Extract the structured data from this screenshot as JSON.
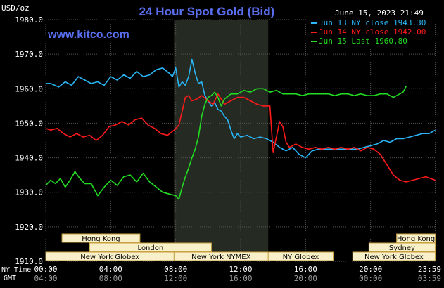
{
  "chart_data": {
    "type": "line",
    "title": "24 Hour Spot Gold (Bid)",
    "watermark": "www.kitco.com",
    "timestamp": "June 15, 2023 21:49",
    "ylabel": "USD/oz",
    "ylim": [
      1910,
      1980
    ],
    "y_ticks": [
      "1980.0",
      "1970.0",
      "1960.0",
      "1950.0",
      "1940.0",
      "1930.0",
      "1920.0",
      "1910.0"
    ],
    "y_tick_values": [
      1980,
      1970,
      1960,
      1950,
      1940,
      1930,
      1920,
      1910
    ],
    "xlim": [
      0,
      24
    ],
    "x_ticks_label": "NY Time",
    "x_ticks": [
      "00:00",
      "04:00",
      "08:00",
      "12:00",
      "16:00",
      "20:00",
      "23:59"
    ],
    "x_tick_values": [
      0,
      4,
      8,
      12,
      16,
      20,
      23.98
    ],
    "gmt_label": "GMT",
    "gmt_ticks": [
      "04:00",
      "08:00",
      "12:00",
      "16:00",
      "20:00",
      "00:00",
      "03:59"
    ],
    "grid": true,
    "highlight_range": [
      7.9,
      13.7
    ],
    "colors": {
      "background": "#000000",
      "grid": "#555555",
      "title": "#5a6ef0",
      "text": "#ffffff",
      "session_fill": "#f8f0c8",
      "session_border": "#c8a040",
      "highlight": "#252a22"
    },
    "series": [
      {
        "name": "Jun 13 NY close 1943.30",
        "color": "#29b6f6",
        "x": [
          0,
          0.3,
          0.8,
          1.2,
          1.6,
          2.0,
          2.4,
          2.8,
          3.2,
          3.6,
          4.0,
          4.4,
          4.8,
          5.2,
          5.6,
          6.0,
          6.4,
          6.8,
          7.2,
          7.6,
          7.8,
          8.0,
          8.2,
          8.4,
          8.6,
          8.8,
          9.0,
          9.2,
          9.4,
          9.6,
          9.8,
          10.0,
          10.2,
          10.4,
          10.6,
          10.8,
          11.0,
          11.2,
          11.4,
          11.6,
          11.8,
          12.0,
          12.4,
          12.8,
          13.2,
          13.6,
          14.0,
          14.4,
          14.8,
          15.2,
          15.6,
          16.0,
          16.4,
          16.8,
          17.2,
          17.6,
          18.0,
          18.4,
          18.8,
          19.2,
          19.6,
          20.0,
          20.4,
          20.8,
          21.2,
          21.6,
          22.0,
          22.4,
          22.8,
          23.2,
          23.6,
          23.98
        ],
        "values": [
          1961.5,
          1961.5,
          1960.5,
          1962.0,
          1961.0,
          1963.5,
          1962.5,
          1961.5,
          1962.0,
          1961.0,
          1963.5,
          1962.5,
          1964.0,
          1963.0,
          1965.0,
          1963.5,
          1964.0,
          1965.5,
          1966.0,
          1964.5,
          1963.5,
          1966.0,
          1960.5,
          1962.0,
          1961.0,
          1963.5,
          1968.5,
          1964.5,
          1961.5,
          1962.0,
          1958.0,
          1956.5,
          1955.0,
          1956.0,
          1954.0,
          1953.5,
          1952.0,
          1951.0,
          1948.0,
          1945.5,
          1947.0,
          1946.0,
          1946.5,
          1945.5,
          1946.0,
          1945.5,
          1944.5,
          1943.0,
          1942.0,
          1943.0,
          1941.0,
          1940.0,
          1942.0,
          1942.5,
          1942.5,
          1942.5,
          1942.5,
          1942.5,
          1942.5,
          1942.5,
          1943.0,
          1943.5,
          1944.0,
          1945.0,
          1944.5,
          1945.5,
          1945.5,
          1946.0,
          1946.5,
          1947.0,
          1947.0,
          1948.0
        ]
      },
      {
        "name": "Jun 14 NY close 1942.00",
        "color": "#ff1a1a",
        "x": [
          0,
          0.3,
          0.7,
          1.1,
          1.5,
          1.9,
          2.3,
          2.7,
          3.1,
          3.5,
          3.9,
          4.3,
          4.7,
          5.1,
          5.5,
          5.9,
          6.3,
          6.7,
          7.1,
          7.5,
          7.9,
          8.0,
          8.2,
          8.4,
          8.6,
          8.8,
          9.0,
          9.3,
          9.6,
          10.0,
          10.3,
          10.6,
          11.0,
          11.4,
          11.8,
          12.2,
          12.6,
          13.0,
          13.4,
          13.8,
          14.0,
          14.2,
          14.4,
          14.6,
          14.8,
          15.0,
          15.4,
          15.8,
          16.2,
          16.6,
          17.0,
          17.4,
          17.8,
          18.2,
          18.6,
          19.0,
          19.4,
          19.8,
          20.2,
          20.6,
          21.0,
          21.4,
          21.8,
          22.2,
          22.6,
          23.0,
          23.4,
          23.98
        ],
        "values": [
          1948.5,
          1948.0,
          1948.5,
          1947.0,
          1946.0,
          1947.0,
          1946.0,
          1946.5,
          1945.0,
          1946.5,
          1949.0,
          1949.5,
          1950.5,
          1949.5,
          1951.0,
          1951.5,
          1949.5,
          1948.5,
          1947.0,
          1946.5,
          1948.0,
          1948.5,
          1949.5,
          1953.5,
          1957.5,
          1958.0,
          1956.5,
          1957.0,
          1958.0,
          1956.5,
          1955.5,
          1958.5,
          1955.5,
          1956.5,
          1957.5,
          1957.5,
          1956.5,
          1955.5,
          1955.0,
          1955.0,
          1941.5,
          1946.0,
          1950.5,
          1949.0,
          1944.5,
          1943.0,
          1944.0,
          1943.0,
          1942.5,
          1943.0,
          1942.5,
          1943.0,
          1942.5,
          1943.0,
          1942.5,
          1943.0,
          1942.0,
          1943.0,
          1942.5,
          1941.0,
          1938.0,
          1935.0,
          1933.5,
          1933.0,
          1933.5,
          1934.0,
          1934.5,
          1933.5
        ]
      },
      {
        "name": "Jun 15 Last 1960.80",
        "color": "#22dd22",
        "x": [
          0,
          0.3,
          0.6,
          0.9,
          1.2,
          1.5,
          1.8,
          2.1,
          2.4,
          2.8,
          3.2,
          3.6,
          4.0,
          4.4,
          4.8,
          5.2,
          5.6,
          6.0,
          6.4,
          6.8,
          7.2,
          7.6,
          8.0,
          8.2,
          8.4,
          8.6,
          8.8,
          9.0,
          9.2,
          9.4,
          9.6,
          9.8,
          10.0,
          10.2,
          10.4,
          10.6,
          10.8,
          11.0,
          11.4,
          11.8,
          12.2,
          12.6,
          13.0,
          13.4,
          13.8,
          14.2,
          14.6,
          15.0,
          15.4,
          15.8,
          16.2,
          16.6,
          17.0,
          17.4,
          17.8,
          18.2,
          18.6,
          19.0,
          19.4,
          19.8,
          20.2,
          20.6,
          21.0,
          21.4,
          21.8,
          22.0,
          22.2
        ],
        "values": [
          1932.0,
          1933.5,
          1932.5,
          1934.0,
          1931.5,
          1933.5,
          1936.0,
          1934.0,
          1932.5,
          1932.5,
          1929.0,
          1931.5,
          1933.5,
          1932.0,
          1934.5,
          1935.0,
          1933.0,
          1935.5,
          1933.0,
          1931.5,
          1930.0,
          1929.5,
          1929.0,
          1928.0,
          1931.5,
          1934.5,
          1937.0,
          1940.0,
          1942.5,
          1946.0,
          1952.0,
          1955.5,
          1957.5,
          1958.0,
          1959.0,
          1957.5,
          1955.0,
          1957.0,
          1958.5,
          1958.5,
          1959.5,
          1959.0,
          1960.0,
          1960.0,
          1959.0,
          1959.5,
          1958.5,
          1958.5,
          1958.5,
          1958.0,
          1958.5,
          1958.5,
          1958.5,
          1958.5,
          1958.0,
          1958.5,
          1958.5,
          1958.0,
          1958.5,
          1958.0,
          1958.0,
          1958.5,
          1958.5,
          1957.5,
          1958.5,
          1959.0,
          1960.8
        ]
      }
    ],
    "sessions": [
      {
        "label": "Hong Kong",
        "start": 1.0,
        "end": 5.8,
        "row": 0
      },
      {
        "label": "Hong Kong",
        "start": 21.6,
        "end": 23.98,
        "row": 0
      },
      {
        "label": "London",
        "start": 2.7,
        "end": 10.2,
        "row": 1
      },
      {
        "label": "Sydney",
        "start": 19.9,
        "end": 23.98,
        "row": 1
      },
      {
        "label": "New York Globex",
        "start": 0.0,
        "end": 7.9,
        "row": 2
      },
      {
        "label": "New York NYMEX",
        "start": 7.9,
        "end": 13.7,
        "row": 2
      },
      {
        "label": "NY Globex",
        "start": 13.7,
        "end": 17.7,
        "row": 2
      },
      {
        "label": "New York Globex",
        "start": 18.9,
        "end": 23.98,
        "row": 2
      }
    ]
  }
}
